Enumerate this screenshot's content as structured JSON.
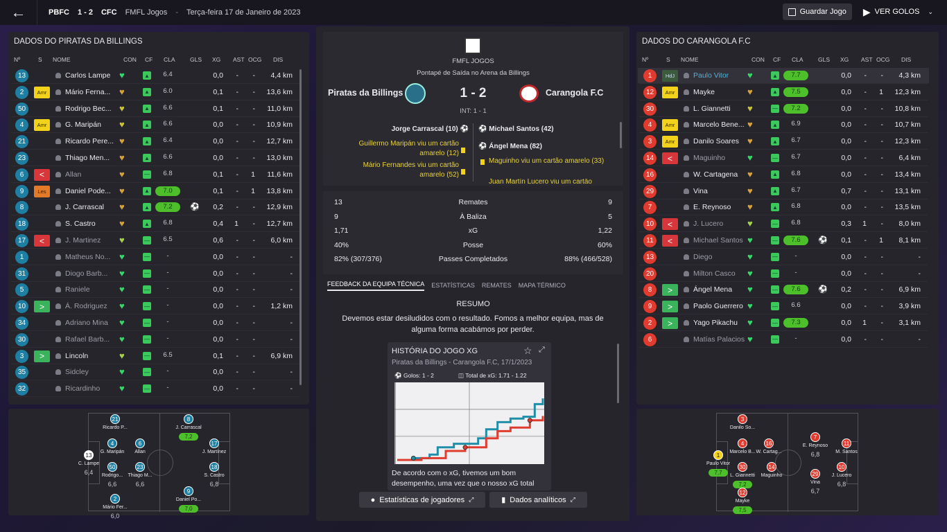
{
  "topbar": {
    "short_home": "PBFC",
    "score": "1 - 2",
    "short_away": "CFC",
    "competition": "FMFL Jogos",
    "sep": "-",
    "date": "Terça-feira 17 de Janeiro de 2023",
    "save_label": "Guardar Jogo",
    "goals_label": "VER GOLOS"
  },
  "colors": {
    "accent_blue": "#1f7fa3",
    "accent_red": "#e03b2f",
    "good_green": "#4cbf2a",
    "yellow": "#f2d21b"
  },
  "left": {
    "title": "DADOS DO PIRATAS DA BILLINGS",
    "headers": [
      "Nº",
      "S",
      "NOME",
      "CON",
      "CF",
      "CLA",
      "GLS",
      "XG",
      "AST",
      "OCG",
      "DIS"
    ],
    "players": [
      {
        "no": "13",
        "s": "",
        "name": "Carlos Lampe",
        "cla": "6.4",
        "gls": "",
        "xg": "0,0",
        "ast": "-",
        "ocg": "-",
        "dis": "4,4 km",
        "hc": "#36d86a"
      },
      {
        "no": "2",
        "s": "Amr",
        "name": "Mário Ferna...",
        "cla": "6.0",
        "gls": "",
        "xg": "0,1",
        "ast": "-",
        "ocg": "-",
        "dis": "13,6 km",
        "hc": "#d8a23a"
      },
      {
        "no": "50",
        "s": "",
        "name": "Rodrigo Bec...",
        "cla": "6.6",
        "gls": "",
        "xg": "0,1",
        "ast": "-",
        "ocg": "-",
        "dis": "11,0 km",
        "hc": "#c9c43a"
      },
      {
        "no": "4",
        "s": "Amr",
        "name": "G. Maripán",
        "cla": "6.6",
        "gls": "",
        "xg": "0,0",
        "ast": "-",
        "ocg": "-",
        "dis": "10,9 km",
        "hc": "#c9c43a"
      },
      {
        "no": "21",
        "s": "",
        "name": "Ricardo Pere...",
        "cla": "6.4",
        "gls": "",
        "xg": "0,0",
        "ast": "-",
        "ocg": "-",
        "dis": "12,7 km",
        "hc": "#d8a23a"
      },
      {
        "no": "23",
        "s": "",
        "name": "Thiago Men...",
        "cla": "6.6",
        "gls": "",
        "xg": "0,0",
        "ast": "-",
        "ocg": "-",
        "dis": "13,0 km",
        "hc": "#d8a23a"
      },
      {
        "no": "6",
        "s": "out",
        "name": "Allan",
        "cla": "6.8",
        "gls": "",
        "xg": "0,1",
        "ast": "-",
        "ocg": "1",
        "dis": "11,6 km",
        "hc": "#d8a23a"
      },
      {
        "no": "9",
        "s": "Les",
        "name": "Daniel Pode...",
        "cla": "7.0",
        "gls": "",
        "xg": "0,1",
        "ast": "-",
        "ocg": "1",
        "dis": "13,8 km",
        "hc": "#d8a23a"
      },
      {
        "no": "8",
        "s": "",
        "name": "J. Carrascal",
        "cla": "7.2",
        "gls": "ball",
        "xg": "0,2",
        "ast": "-",
        "ocg": "-",
        "dis": "12,9 km",
        "hc": "#d8a23a"
      },
      {
        "no": "18",
        "s": "",
        "name": "S. Castro",
        "cla": "6.8",
        "gls": "",
        "xg": "0,4",
        "ast": "1",
        "ocg": "-",
        "dis": "12,7 km",
        "hc": "#d8a23a"
      },
      {
        "no": "17",
        "s": "out",
        "name": "J. Martinez",
        "cla": "6.5",
        "gls": "",
        "xg": "0,6",
        "ast": "-",
        "ocg": "-",
        "dis": "6,0 km",
        "hc": "#a6d24a"
      },
      {
        "no": "1",
        "s": "",
        "name": "Matheus No...",
        "cla": "-",
        "gls": "",
        "xg": "0,0",
        "ast": "-",
        "ocg": "-",
        "dis": "-",
        "hc": "#36d86a"
      },
      {
        "no": "31",
        "s": "",
        "name": "Diogo Barb...",
        "cla": "-",
        "gls": "",
        "xg": "0,0",
        "ast": "-",
        "ocg": "-",
        "dis": "-",
        "hc": "#36d86a"
      },
      {
        "no": "5",
        "s": "",
        "name": "Raniele",
        "cla": "-",
        "gls": "",
        "xg": "0,0",
        "ast": "-",
        "ocg": "-",
        "dis": "-",
        "hc": "#36d86a"
      },
      {
        "no": "10",
        "s": "in",
        "name": "Á. Rodriguez",
        "cla": "-",
        "gls": "",
        "xg": "0,0",
        "ast": "-",
        "ocg": "-",
        "dis": "1,2 km",
        "hc": "#36d86a"
      },
      {
        "no": "34",
        "s": "",
        "name": "Adriano Mina",
        "cla": "-",
        "gls": "",
        "xg": "0,0",
        "ast": "-",
        "ocg": "-",
        "dis": "-",
        "hc": "#36d86a"
      },
      {
        "no": "30",
        "s": "",
        "name": "Rafael Barb...",
        "cla": "-",
        "gls": "",
        "xg": "0,0",
        "ast": "-",
        "ocg": "-",
        "dis": "-",
        "hc": "#36d86a"
      },
      {
        "no": "3",
        "s": "in",
        "name": "Lincoln",
        "cla": "6.5",
        "gls": "",
        "xg": "0,1",
        "ast": "-",
        "ocg": "-",
        "dis": "6,9 km",
        "hc": "#a6d24a"
      },
      {
        "no": "35",
        "s": "",
        "name": "Sidcley",
        "cla": "-",
        "gls": "",
        "xg": "0,0",
        "ast": "-",
        "ocg": "-",
        "dis": "-",
        "hc": "#36d86a"
      },
      {
        "no": "32",
        "s": "",
        "name": "Ricardinho",
        "cla": "-",
        "gls": "",
        "xg": "0,0",
        "ast": "-",
        "ocg": "-",
        "dis": "-",
        "hc": "#36d86a"
      }
    ]
  },
  "right": {
    "title": "DADOS DO CARANGOLA F.C",
    "headers": [
      "Nº",
      "S",
      "NOME",
      "CON",
      "CF",
      "CLA",
      "GLS",
      "XG",
      "AST",
      "OCG",
      "DIS"
    ],
    "players": [
      {
        "no": "1",
        "s": "HdJ",
        "name": "Paulo Vitor",
        "cla": "7.7",
        "gls": "",
        "xg": "0,0",
        "ast": "-",
        "ocg": "-",
        "dis": "4,3 km",
        "hc": "#36d86a",
        "hl": true
      },
      {
        "no": "12",
        "s": "Amr",
        "name": "Mayke",
        "cla": "7.5",
        "gls": "",
        "xg": "0,0",
        "ast": "-",
        "ocg": "1",
        "dis": "12,3 km",
        "hc": "#d8a23a"
      },
      {
        "no": "30",
        "s": "",
        "name": "L. Giannetti",
        "cla": "7.2",
        "gls": "",
        "xg": "0,0",
        "ast": "-",
        "ocg": "-",
        "dis": "10,8 km",
        "hc": "#c9c43a"
      },
      {
        "no": "4",
        "s": "Amr",
        "name": "Marcelo Bene...",
        "cla": "6.9",
        "gls": "",
        "xg": "0,0",
        "ast": "-",
        "ocg": "-",
        "dis": "10,7 km",
        "hc": "#d8a23a"
      },
      {
        "no": "3",
        "s": "Amr",
        "name": "Danilo Soares",
        "cla": "6.7",
        "gls": "",
        "xg": "0,0",
        "ast": "-",
        "ocg": "-",
        "dis": "12,3 km",
        "hc": "#d8a23a"
      },
      {
        "no": "14",
        "s": "out",
        "name": "Maguinho",
        "cla": "6.7",
        "gls": "",
        "xg": "0,0",
        "ast": "-",
        "ocg": "-",
        "dis": "6,4 km",
        "hc": "#36d86a"
      },
      {
        "no": "16",
        "s": "",
        "name": "W. Cartagena",
        "cla": "6.8",
        "gls": "",
        "xg": "0,0",
        "ast": "-",
        "ocg": "-",
        "dis": "13,4 km",
        "hc": "#d8a23a"
      },
      {
        "no": "29",
        "s": "",
        "name": "Vina",
        "cla": "6.7",
        "gls": "",
        "xg": "0,7",
        "ast": "-",
        "ocg": "-",
        "dis": "13,1 km",
        "hc": "#d8a23a"
      },
      {
        "no": "7",
        "s": "",
        "name": "E. Reynoso",
        "cla": "6.8",
        "gls": "",
        "xg": "0,0",
        "ast": "-",
        "ocg": "-",
        "dis": "13,5 km",
        "hc": "#d8a23a"
      },
      {
        "no": "10",
        "s": "out",
        "name": "J. Lucero",
        "cla": "6.8",
        "gls": "",
        "xg": "0,3",
        "ast": "1",
        "ocg": "-",
        "dis": "8,0 km",
        "hc": "#a6d24a"
      },
      {
        "no": "11",
        "s": "out",
        "name": "Michael Santos",
        "cla": "7.6",
        "gls": "ball",
        "xg": "0,1",
        "ast": "-",
        "ocg": "1",
        "dis": "8,1 km",
        "hc": "#36d86a"
      },
      {
        "no": "13",
        "s": "",
        "name": "Diego",
        "cla": "-",
        "gls": "",
        "xg": "0,0",
        "ast": "-",
        "ocg": "-",
        "dis": "-",
        "hc": "#36d86a"
      },
      {
        "no": "20",
        "s": "",
        "name": "Milton Casco",
        "cla": "-",
        "gls": "",
        "xg": "0,0",
        "ast": "-",
        "ocg": "-",
        "dis": "-",
        "hc": "#36d86a"
      },
      {
        "no": "8",
        "s": "in",
        "name": "Ángel Mena",
        "cla": "7.6",
        "gls": "ball",
        "xg": "0,2",
        "ast": "-",
        "ocg": "-",
        "dis": "6,9 km",
        "hc": "#36d86a"
      },
      {
        "no": "9",
        "s": "in",
        "name": "Paolo Guerrero",
        "cla": "6.6",
        "gls": "",
        "xg": "0,0",
        "ast": "-",
        "ocg": "-",
        "dis": "3,9 km",
        "hc": "#36d86a"
      },
      {
        "no": "2",
        "s": "in",
        "name": "Yago Pikachu",
        "cla": "7.3",
        "gls": "",
        "xg": "0,0",
        "ast": "1",
        "ocg": "-",
        "dis": "3,1 km",
        "hc": "#36d86a"
      },
      {
        "no": "6",
        "s": "",
        "name": "Matías Palacios",
        "cla": "-",
        "gls": "",
        "xg": "0,0",
        "ast": "-",
        "ocg": "-",
        "dis": "-",
        "hc": "#36d86a"
      }
    ]
  },
  "match": {
    "competition": "FMFL JOGOS",
    "venue": "Pontapé de Saída no Arena da Billings",
    "home": "Piratas da Billings",
    "away": "Carangola F.C",
    "score": "1 - 2",
    "interval": "INT: 1 - 1",
    "home_events": [
      "Jorge Carrascal (10)",
      "Guillermo Maripán viu um cartão amarelo (12)",
      "Mário Fernandes viu um cartão amarelo (52)"
    ],
    "away_events": [
      "Michael Santos (42)",
      "Ángel Mena (82)",
      "Maguinho viu um cartão amarelo (33)",
      "Juan Martín Lucero viu um cartão"
    ]
  },
  "stats": [
    {
      "h": "13",
      "label": "Remates",
      "a": "9"
    },
    {
      "h": "9",
      "label": "À Baliza",
      "a": "5"
    },
    {
      "h": "1,71",
      "label": "xG",
      "a": "1,22"
    },
    {
      "h": "40%",
      "label": "Posse",
      "a": "60%"
    },
    {
      "h": "82% (307/376)",
      "label": "Passes Completados",
      "a": "88% (466/528)"
    }
  ],
  "tabs": [
    "FEEDBACK DA EQUIPA TÉCNICA",
    "ESTATÍSTICAS",
    "REMATES",
    "MAPA TÉRMICO"
  ],
  "feedback": {
    "title": "RESUMO",
    "text": "Devemos estar desiludidos com o resultado. Fomos a melhor equipa, mas de alguma forma acabámos por perder.",
    "card_title": "HISTÓRIA DO JOGO XG",
    "card_sub": "Piratas da Billings - Carangola F.C, 17/1/2023",
    "goals": "Golos: 1 - 2",
    "total_xg": "Total de xG: 1.71 - 1.22",
    "note": "De acordo com o xG, tivemos um bom desempenho, uma vez que o nosso xG total"
  },
  "buttons": {
    "player_stats": "Estatísticas de jogadores",
    "analytics": "Dados analíticos"
  },
  "chart_data": {
    "type": "line",
    "title": "HISTÓRIA DO JOGO XG",
    "series": [
      {
        "name": "Piratas da Billings",
        "color": "#1f8ea8",
        "x": [
          0,
          10,
          20,
          25,
          35,
          45,
          50,
          55,
          62,
          70,
          78,
          85,
          90
        ],
        "y": [
          0,
          0.05,
          0.15,
          0.35,
          0.45,
          0.45,
          0.6,
          0.85,
          1.05,
          1.15,
          1.2,
          1.55,
          1.71
        ]
      },
      {
        "name": "Carangola F.C",
        "color": "#e03b2f",
        "x": [
          0,
          15,
          30,
          42,
          55,
          62,
          70,
          82,
          90
        ],
        "y": [
          0,
          0.05,
          0.25,
          0.35,
          0.6,
          0.8,
          0.9,
          1.1,
          1.22
        ]
      }
    ],
    "goals_home_min": [
      10
    ],
    "goals_away_min": [
      42,
      82
    ]
  },
  "pitch_left": [
    {
      "no": "13",
      "name": "C. Lampe",
      "rating": "6,4",
      "gk": true
    },
    {
      "no": "21",
      "name": "Ricardo P...",
      "rating": ""
    },
    {
      "no": "4",
      "name": "G. Maripán",
      "rating": ""
    },
    {
      "no": "50",
      "name": "Rodrigo...",
      "rating": "6,6"
    },
    {
      "no": "2",
      "name": "Mário Fer...",
      "rating": "6,0"
    },
    {
      "no": "6",
      "name": "Allan",
      "rating": ""
    },
    {
      "no": "23",
      "name": "Thiago M...",
      "rating": "6,6"
    },
    {
      "no": "8",
      "name": "J. Carrascal",
      "rating": "7,2"
    },
    {
      "no": "17",
      "name": "J. Martínez",
      "rating": ""
    },
    {
      "no": "18",
      "name": "S. Castro",
      "rating": "6,8"
    },
    {
      "no": "9",
      "name": "Daniel Po...",
      "rating": "7,0"
    }
  ],
  "pitch_right": [
    {
      "no": "1",
      "name": "Paulo Vitor",
      "rating": "7,7",
      "gk": true
    },
    {
      "no": "3",
      "name": "Danilo So...",
      "rating": ""
    },
    {
      "no": "4",
      "name": "Marcelo B...",
      "rating": ""
    },
    {
      "no": "30",
      "name": "L. Giannetti",
      "rating": "7,2"
    },
    {
      "no": "12",
      "name": "Mayke",
      "rating": "7,5"
    },
    {
      "no": "16",
      "name": "W. Cartag...",
      "rating": ""
    },
    {
      "no": "14",
      "name": "Maguinho",
      "rating": ""
    },
    {
      "no": "7",
      "name": "E. Reynoso",
      "rating": "6,8"
    },
    {
      "no": "29",
      "name": "Vina",
      "rating": "6,7"
    },
    {
      "no": "11",
      "name": "M. Santos",
      "rating": ""
    },
    {
      "no": "10",
      "name": "J. Lucero",
      "rating": "6,8"
    }
  ]
}
